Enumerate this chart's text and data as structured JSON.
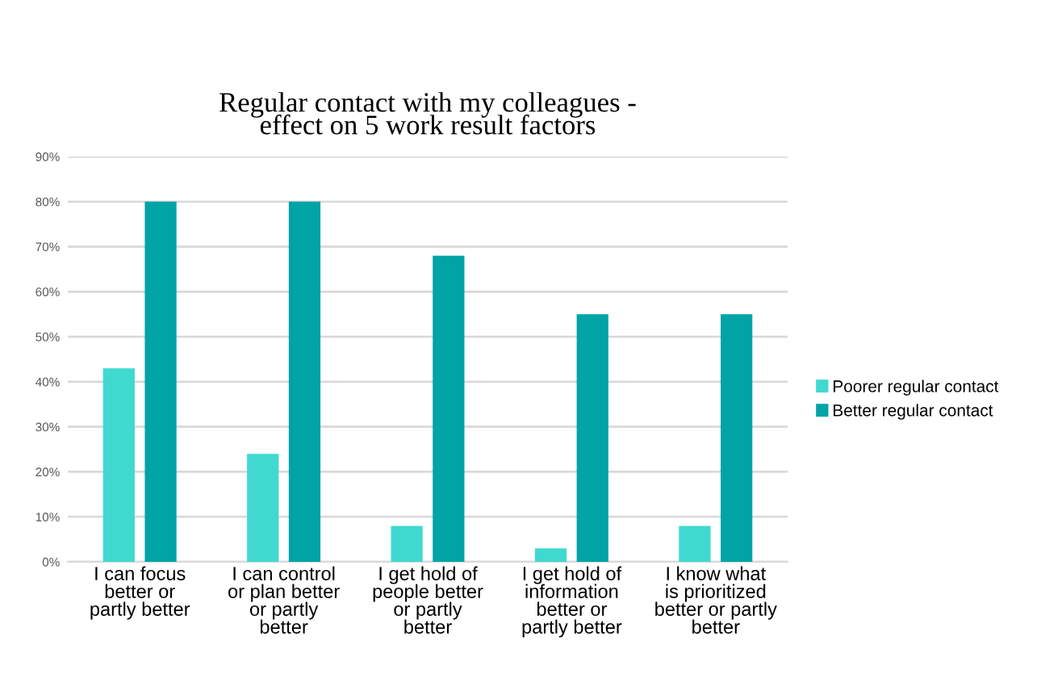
{
  "chart_data": {
    "type": "bar",
    "title": "Regular contact with my colleagues -\neffect on 5 work result factors",
    "categories": [
      "I can focus\nbetter or\npartly better",
      "I can control\nor plan better\nor partly\nbetter",
      "I get hold of\npeople better\nor partly\nbetter",
      "I get hold of\ninformation\nbetter or\npartly better",
      "I know what\nis prioritized\nbetter or partly\nbetter"
    ],
    "series": [
      {
        "name": "Poorer regular contact",
        "color": "#40d9cf",
        "values": [
          43,
          24,
          8,
          3,
          8
        ]
      },
      {
        "name": "Better regular contact",
        "color": "#00a3a6",
        "values": [
          80,
          80,
          68,
          55,
          55
        ]
      }
    ],
    "ylim": [
      0,
      90
    ],
    "yticks": [
      {
        "value": 0,
        "label": "0%"
      },
      {
        "value": 10,
        "label": "10%"
      },
      {
        "value": 20,
        "label": "20%"
      },
      {
        "value": 30,
        "label": "30%"
      },
      {
        "value": 40,
        "label": "40%"
      },
      {
        "value": 50,
        "label": "50%"
      },
      {
        "value": 60,
        "label": "60%"
      },
      {
        "value": 70,
        "label": "70%"
      },
      {
        "value": 80,
        "label": "80%"
      },
      {
        "value": 90,
        "label": "90%"
      }
    ],
    "grid": "y",
    "legend": "right"
  }
}
